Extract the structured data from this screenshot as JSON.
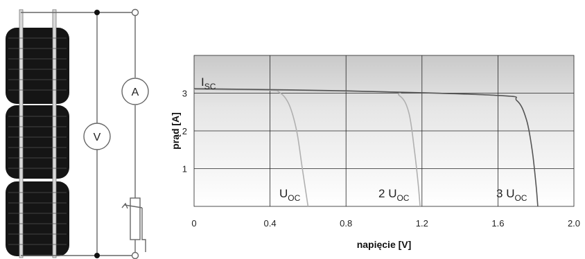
{
  "circuit": {
    "modules": 3,
    "voltmeter_label": "V",
    "ammeter_label": "A"
  },
  "chart_data": {
    "type": "line",
    "title": "",
    "xlabel": "napięcie [V]",
    "ylabel": "prąd [A]",
    "xlim": [
      0,
      2.0
    ],
    "ylim": [
      0,
      4.0
    ],
    "xticks": [
      "0",
      "0.4",
      "0.8",
      "1.2",
      "1.6",
      "2.0"
    ],
    "yticks": [
      "1",
      "2",
      "3"
    ],
    "grid": true,
    "series": [
      {
        "points": [
          [
            0,
            3.1
          ],
          [
            0.38,
            3.08
          ],
          [
            0.45,
            3.02
          ],
          [
            0.5,
            2.7
          ],
          [
            0.54,
            2.0
          ],
          [
            0.57,
            1.0
          ],
          [
            0.6,
            0.0
          ]
        ],
        "color": "#b0b0b0"
      },
      {
        "points": [
          [
            0,
            3.1
          ],
          [
            0.98,
            3.04
          ],
          [
            1.08,
            2.94
          ],
          [
            1.13,
            2.5
          ],
          [
            1.16,
            1.5
          ],
          [
            1.18,
            0.6
          ],
          [
            1.19,
            0.0
          ]
        ],
        "color": "#b0b0b0"
      },
      {
        "points": [
          [
            0,
            3.12
          ],
          [
            0.8,
            3.06
          ],
          [
            1.6,
            2.94
          ],
          [
            1.7,
            2.8
          ],
          [
            1.75,
            2.3
          ],
          [
            1.78,
            1.5
          ],
          [
            1.8,
            0.6
          ],
          [
            1.81,
            0.0
          ]
        ],
        "color": "#555555"
      }
    ],
    "annotations": {
      "isc": {
        "main": "I",
        "sub": "SC"
      },
      "uoc1": {
        "prefix": "",
        "main": "U",
        "sub": "OC"
      },
      "uoc2": {
        "prefix": "2 ",
        "main": "U",
        "sub": "OC"
      },
      "uoc3": {
        "prefix": "3 ",
        "main": "U",
        "sub": "OC"
      }
    }
  }
}
